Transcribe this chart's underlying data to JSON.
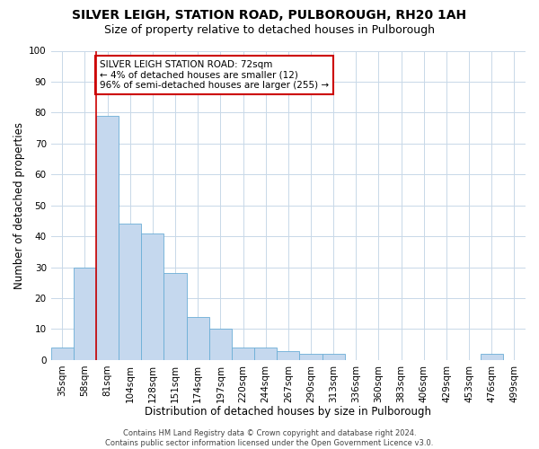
{
  "title": "SILVER LEIGH, STATION ROAD, PULBOROUGH, RH20 1AH",
  "subtitle": "Size of property relative to detached houses in Pulborough",
  "xlabel": "Distribution of detached houses by size in Pulborough",
  "ylabel": "Number of detached properties",
  "categories": [
    "35sqm",
    "58sqm",
    "81sqm",
    "104sqm",
    "128sqm",
    "151sqm",
    "174sqm",
    "197sqm",
    "220sqm",
    "244sqm",
    "267sqm",
    "290sqm",
    "313sqm",
    "336sqm",
    "360sqm",
    "383sqm",
    "406sqm",
    "429sqm",
    "453sqm",
    "476sqm",
    "499sqm"
  ],
  "values": [
    4,
    30,
    79,
    44,
    41,
    28,
    14,
    10,
    4,
    4,
    3,
    2,
    2,
    0,
    0,
    0,
    0,
    0,
    0,
    2,
    0
  ],
  "bar_color": "#c5d8ee",
  "bar_edge_color": "#6baed6",
  "vline_x_index": 1.5,
  "vline_color": "#cc0000",
  "annotation_text": "SILVER LEIGH STATION ROAD: 72sqm\n← 4% of detached houses are smaller (12)\n96% of semi-detached houses are larger (255) →",
  "annotation_box_color": "#ffffff",
  "annotation_box_edge_color": "#cc0000",
  "ylim": [
    0,
    100
  ],
  "yticks": [
    0,
    10,
    20,
    30,
    40,
    50,
    60,
    70,
    80,
    90,
    100
  ],
  "footnote": "Contains HM Land Registry data © Crown copyright and database right 2024.\nContains public sector information licensed under the Open Government Licence v3.0.",
  "bg_color": "#ffffff",
  "grid_color": "#c8d8e8",
  "title_fontsize": 10,
  "subtitle_fontsize": 9,
  "tick_fontsize": 7.5,
  "xlabel_fontsize": 8.5,
  "ylabel_fontsize": 8.5,
  "footnote_fontsize": 6,
  "annotation_fontsize": 7.5
}
